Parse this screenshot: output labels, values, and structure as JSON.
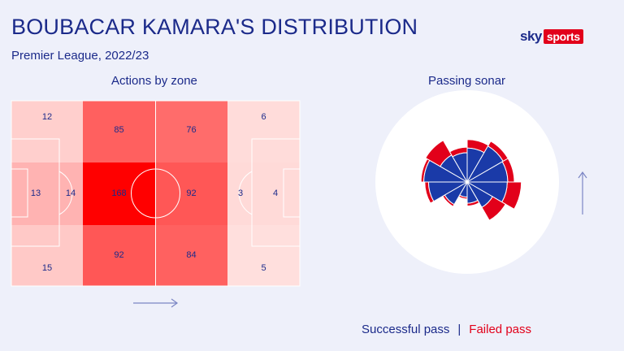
{
  "header": {
    "title": "BOUBACAR KAMARA'S DISTRIBUTION",
    "subtitle": "Premier League, 2022/23"
  },
  "logo": {
    "sky": "sky",
    "sports": "sports"
  },
  "colors": {
    "text": "#1b2a8a",
    "successful": "#1a3aa8",
    "failed": "#e2001a",
    "background": "#eef0fa"
  },
  "chart_data": [
    {
      "type": "heatmap",
      "title": "Actions by zone",
      "rows": [
        "top",
        "middle",
        "bottom"
      ],
      "zones": [
        [
          12,
          85,
          76,
          6
        ],
        [
          [
            13,
            14
          ],
          168,
          92,
          [
            3,
            4
          ]
        ],
        [
          15,
          92,
          84,
          5
        ]
      ],
      "labels": [
        {
          "row": 0,
          "col": 0,
          "value": "12"
        },
        {
          "row": 0,
          "col": 1,
          "value": "85"
        },
        {
          "row": 0,
          "col": 2,
          "value": "76"
        },
        {
          "row": 0,
          "col": 3,
          "value": "6"
        },
        {
          "row": 1,
          "col": 0,
          "part": "box",
          "value": "13"
        },
        {
          "row": 1,
          "col": 0,
          "part": "outside",
          "value": "14"
        },
        {
          "row": 1,
          "col": 1,
          "value": "168"
        },
        {
          "row": 1,
          "col": 2,
          "value": "92"
        },
        {
          "row": 1,
          "col": 3,
          "part": "outside",
          "value": "3"
        },
        {
          "row": 1,
          "col": 3,
          "part": "box",
          "value": "4"
        },
        {
          "row": 2,
          "col": 0,
          "value": "15"
        },
        {
          "row": 2,
          "col": 1,
          "value": "92"
        },
        {
          "row": 2,
          "col": 2,
          "value": "84"
        },
        {
          "row": 2,
          "col": 3,
          "value": "5"
        }
      ],
      "attack_direction": "right"
    },
    {
      "type": "polar-bar",
      "title": "Passing sonar",
      "attack_direction": "up",
      "angles_deg": [
        -165,
        -135,
        -105,
        -75,
        -45,
        -15,
        15,
        45,
        75,
        105,
        135,
        165
      ],
      "successful": [
        0.32,
        0.55,
        0.82,
        0.92,
        0.66,
        0.62,
        0.72,
        0.88,
        0.86,
        0.85,
        0.62,
        0.45
      ],
      "failed": [
        0.04,
        0.05,
        0.08,
        0.06,
        0.36,
        0.12,
        0.18,
        0.12,
        0.14,
        0.3,
        0.32,
        0.06
      ],
      "legend": {
        "successful": "Successful pass",
        "separator": "|",
        "failed": "Failed pass"
      }
    }
  ]
}
